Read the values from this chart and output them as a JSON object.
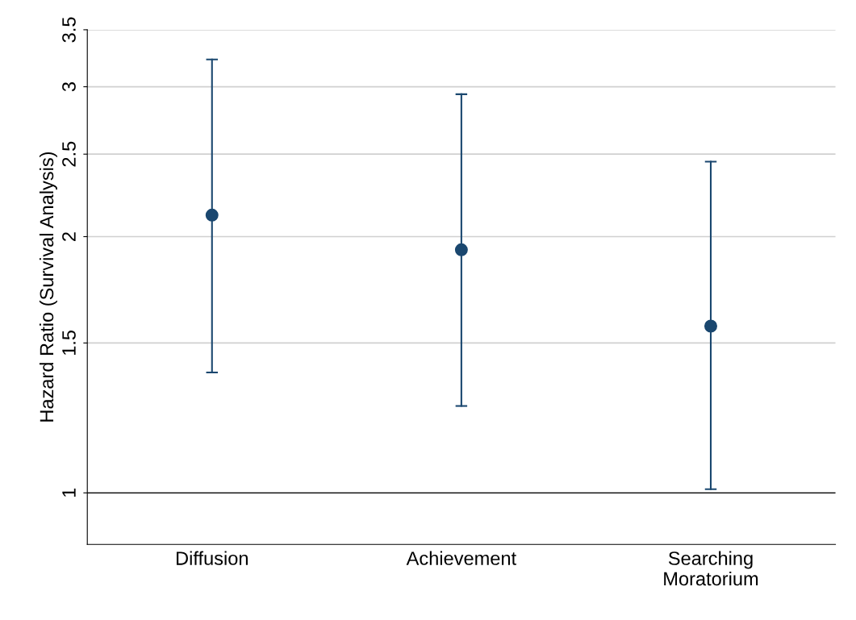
{
  "chart_data": {
    "type": "scatter",
    "ylabel": "Hazard Ratio (Survival Analysis)",
    "categories": [
      "Diffusion",
      "Achievement",
      "Searching\nMoratorium"
    ],
    "series": [
      {
        "color": "#1a476f",
        "values": [
          2.12,
          1.93,
          1.57
        ],
        "errors": [
          [
            1.385,
            3.23
          ],
          [
            1.265,
            2.94
          ],
          [
            1.01,
            2.45
          ]
        ]
      }
    ],
    "log": "y",
    "ylim": [
      0.87,
      3.5
    ],
    "yticks": [
      1,
      1.5,
      2,
      2.5,
      3,
      3.5
    ],
    "grid": "y",
    "marker": "circle",
    "ref_lines": [
      {
        "axis": "y",
        "value": 1,
        "color": "#000000"
      }
    ]
  }
}
